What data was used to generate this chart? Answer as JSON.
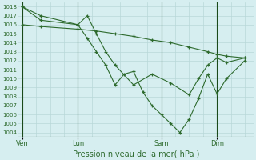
{
  "title": "Pression niveau de la mer( hPa )",
  "bg_color": "#d6eef0",
  "grid_color": "#b8d8d8",
  "line_color": "#2d6a2d",
  "dark_line_color": "#1a4a1a",
  "ylim": [
    1003.5,
    1018.5
  ],
  "yticks": [
    1004,
    1005,
    1006,
    1007,
    1008,
    1009,
    1010,
    1011,
    1012,
    1013,
    1014,
    1015,
    1016,
    1017,
    1018
  ],
  "x_day_labels": [
    [
      "Ven",
      0.0
    ],
    [
      "Lun",
      0.25
    ],
    [
      "Sam",
      0.625
    ],
    [
      "Dim",
      0.875
    ]
  ],
  "series": [
    {
      "x": [
        0.0,
        0.083,
        0.25,
        0.333,
        0.417,
        0.5,
        0.583,
        0.667,
        0.75,
        0.833,
        0.875,
        0.917,
        1.0
      ],
      "y": [
        1016.0,
        1015.8,
        1015.5,
        1015.3,
        1015.0,
        1014.7,
        1014.3,
        1014.0,
        1013.5,
        1013.0,
        1012.7,
        1012.5,
        1012.3
      ]
    },
    {
      "x": [
        0.0,
        0.083,
        0.25,
        0.292,
        0.333,
        0.375,
        0.417,
        0.458,
        0.5,
        0.542,
        0.583,
        0.625,
        0.667,
        0.708,
        0.75,
        0.792,
        0.833,
        0.875,
        0.917,
        1.0
      ],
      "y": [
        1018.0,
        1016.5,
        1016.0,
        1014.5,
        1013.0,
        1011.5,
        1009.3,
        1010.5,
        1010.8,
        1008.5,
        1007.0,
        1006.0,
        1005.0,
        1004.0,
        1005.5,
        1007.8,
        1010.5,
        1008.3,
        1010.0,
        1012.0
      ]
    },
    {
      "x": [
        0.0,
        0.083,
        0.25,
        0.292,
        0.333,
        0.375,
        0.417,
        0.5,
        0.583,
        0.667,
        0.75,
        0.792,
        0.833,
        0.875,
        0.917,
        1.0
      ],
      "y": [
        1018.0,
        1017.0,
        1016.0,
        1017.0,
        1015.0,
        1013.0,
        1011.5,
        1009.3,
        1010.5,
        1009.5,
        1008.2,
        1010.0,
        1011.5,
        1012.3,
        1011.8,
        1012.3
      ]
    }
  ]
}
